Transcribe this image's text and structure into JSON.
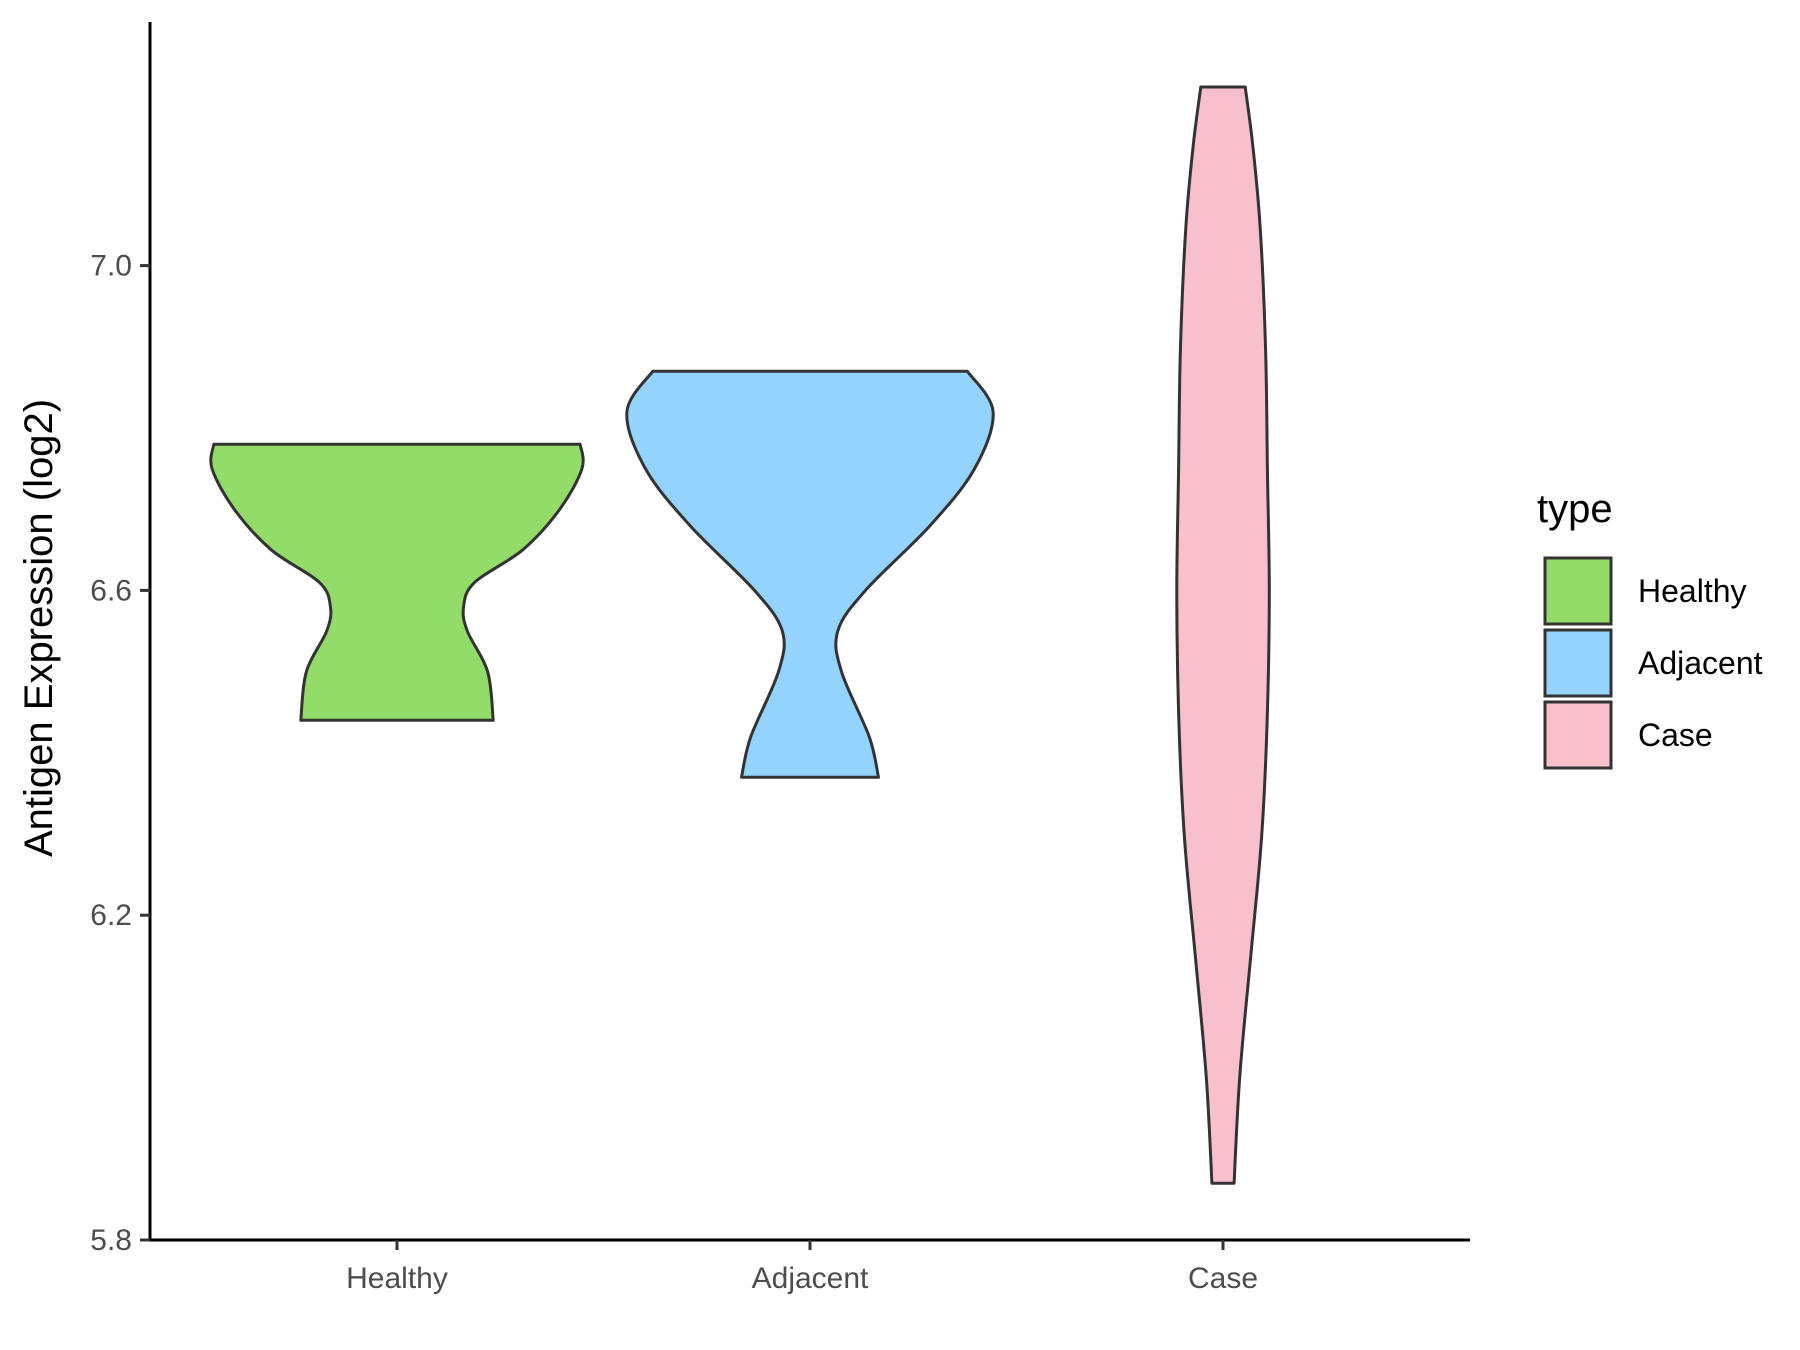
{
  "chart_data": {
    "type": "violin",
    "ylabel": "Antigen Expression (log2)",
    "ylim": [
      5.8,
      7.3
    ],
    "yticks": [
      5.8,
      6.2,
      6.6,
      7.0
    ],
    "ytick_labels": [
      "5.8",
      "6.2",
      "6.6",
      "7.0"
    ],
    "categories": [
      "Healthy",
      "Adjacent",
      "Case"
    ],
    "grid": false,
    "legend": {
      "title": "type",
      "position": "right",
      "entries": [
        {
          "label": "Healthy",
          "color": "#93dc6a"
        },
        {
          "label": "Adjacent",
          "color": "#93d3fd"
        },
        {
          "label": "Case",
          "color": "#f7c0cc"
        }
      ]
    },
    "series": [
      {
        "name": "Healthy",
        "color": "#93dc6a",
        "min": 6.44,
        "max": 6.78,
        "profile": [
          [
            6.44,
            0.52
          ],
          [
            6.5,
            0.49
          ],
          [
            6.55,
            0.38
          ],
          [
            6.58,
            0.36
          ],
          [
            6.61,
            0.42
          ],
          [
            6.65,
            0.68
          ],
          [
            6.7,
            0.88
          ],
          [
            6.75,
            1.0
          ],
          [
            6.78,
            0.99
          ]
        ]
      },
      {
        "name": "Adjacent",
        "color": "#93d3fd",
        "min": 6.37,
        "max": 6.87,
        "profile": [
          [
            6.37,
            0.37
          ],
          [
            6.42,
            0.32
          ],
          [
            6.5,
            0.17
          ],
          [
            6.55,
            0.15
          ],
          [
            6.6,
            0.3
          ],
          [
            6.68,
            0.65
          ],
          [
            6.75,
            0.89
          ],
          [
            6.82,
            0.99
          ],
          [
            6.87,
            0.85
          ]
        ]
      },
      {
        "name": "Case",
        "color": "#f7c0cc",
        "min": 5.87,
        "max": 7.22,
        "profile": [
          [
            5.87,
            0.06
          ],
          [
            6.0,
            0.09
          ],
          [
            6.15,
            0.15
          ],
          [
            6.3,
            0.21
          ],
          [
            6.45,
            0.24
          ],
          [
            6.6,
            0.25
          ],
          [
            6.75,
            0.24
          ],
          [
            6.9,
            0.23
          ],
          [
            7.05,
            0.2
          ],
          [
            7.15,
            0.16
          ],
          [
            7.22,
            0.12
          ]
        ]
      }
    ]
  }
}
